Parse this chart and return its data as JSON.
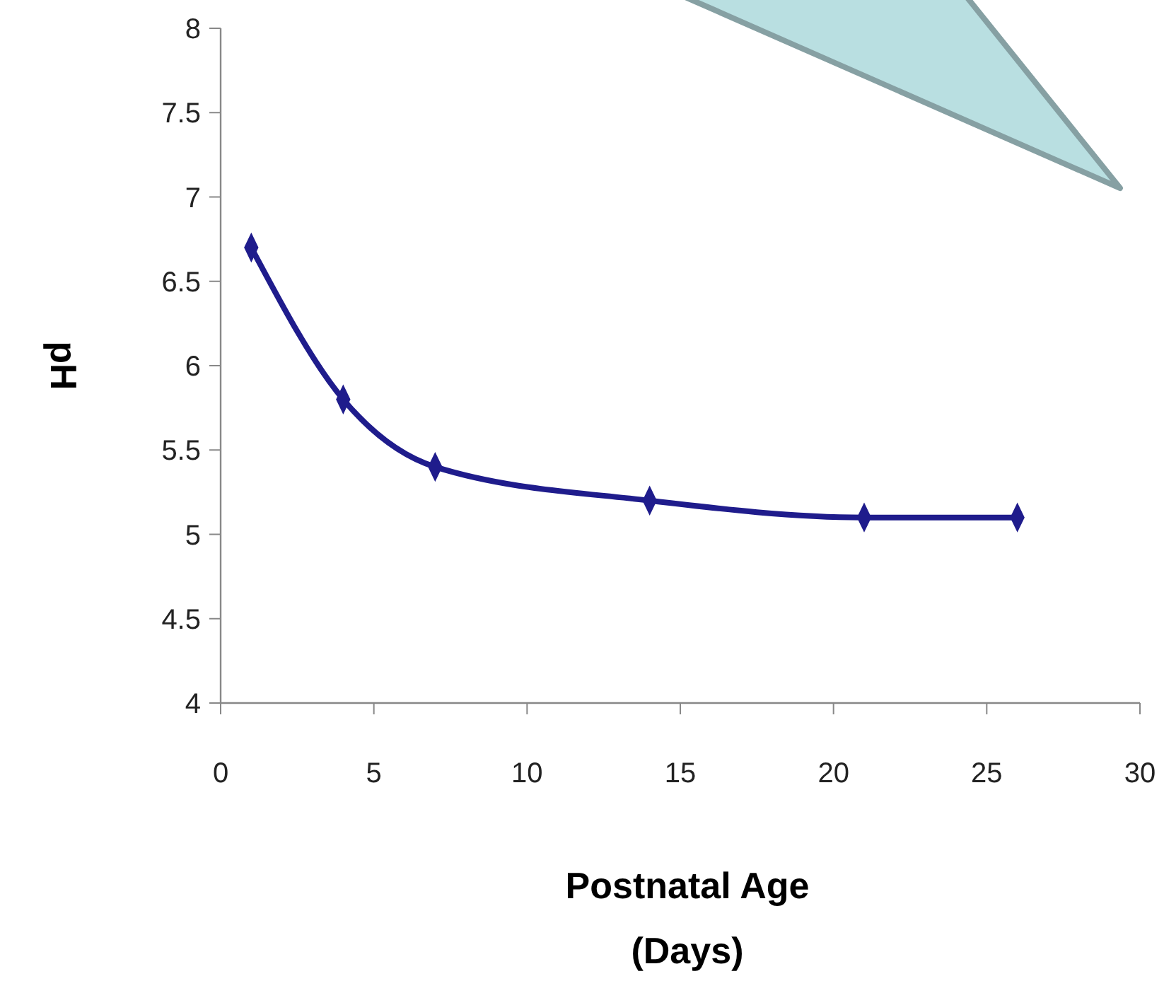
{
  "chart_data": {
    "type": "line",
    "xlabel": "Postnatal Age\n(Days)",
    "ylabel": "pH",
    "x": [
      1,
      4,
      7,
      14,
      21,
      26
    ],
    "series": [
      {
        "color": "#1f1c8c",
        "values": [
          6.7,
          5.8,
          5.4,
          5.2,
          5.1,
          5.1
        ]
      }
    ],
    "xlim": [
      0,
      30
    ],
    "xticks": [
      0,
      5,
      10,
      15,
      20,
      25,
      30
    ],
    "ylim": [
      4,
      8
    ],
    "yticks": [
      4,
      4.5,
      5,
      5.5,
      6,
      6.5,
      7,
      7.5,
      8
    ],
    "marker": "diamond",
    "line_style": "solid"
  }
}
